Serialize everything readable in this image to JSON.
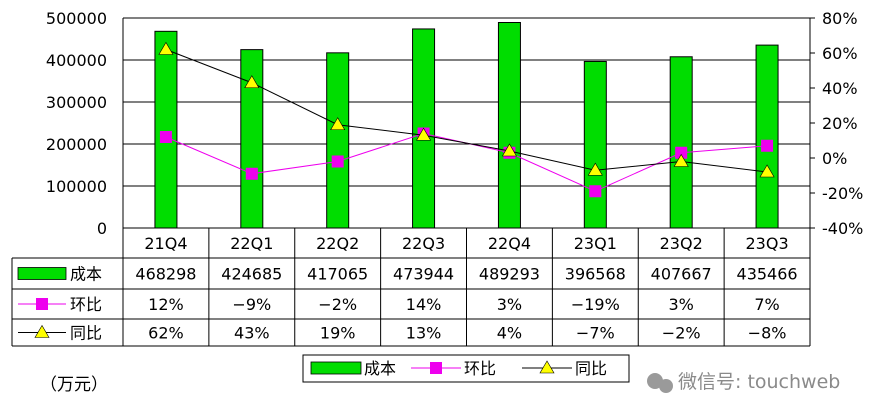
{
  "chart_data": {
    "type": "bar",
    "categories": [
      "21Q4",
      "22Q1",
      "22Q2",
      "22Q3",
      "22Q4",
      "23Q1",
      "23Q2",
      "23Q3"
    ],
    "y_left": {
      "lim": [
        0,
        500000
      ],
      "ticks": [
        0,
        100000,
        200000,
        300000,
        400000,
        500000
      ],
      "tick_labels": [
        "0",
        "100000",
        "200000",
        "300000",
        "400000",
        "500000"
      ]
    },
    "y_right": {
      "lim": [
        -40,
        80
      ],
      "ticks": [
        -40,
        -20,
        0,
        20,
        40,
        60,
        80
      ],
      "tick_labels": [
        "-40%",
        "-20%",
        "0%",
        "20%",
        "40%",
        "60%",
        "80%"
      ]
    },
    "series": [
      {
        "name": "成本",
        "kind": "bar",
        "axis": "left",
        "color": "#00dd00",
        "values": [
          468298,
          424685,
          417065,
          473944,
          489293,
          396568,
          407667,
          435466
        ],
        "labels": [
          "468298",
          "424685",
          "417065",
          "473944",
          "489293",
          "396568",
          "407667",
          "435466"
        ]
      },
      {
        "name": "环比",
        "kind": "line",
        "axis": "right",
        "color": "#ee00ee",
        "marker": "square",
        "values": [
          12,
          -9,
          -2,
          14,
          3,
          -19,
          3,
          7
        ],
        "labels": [
          "12%",
          "−9%",
          "−2%",
          "14%",
          "3%",
          "−19%",
          "3%",
          "7%"
        ]
      },
      {
        "name": "同比",
        "kind": "line",
        "axis": "right",
        "color": "#000000",
        "marker": "triangle",
        "marker_color": "#ffff00",
        "values": [
          62,
          43,
          19,
          13,
          4,
          -7,
          -2,
          -8
        ],
        "labels": [
          "62%",
          "43%",
          "19%",
          "13%",
          "4%",
          "−7%",
          "−2%",
          "−8%"
        ]
      }
    ],
    "legend_placement": "bottom"
  },
  "unit_note": "（万元）",
  "watermark": "微信号: touchweb"
}
